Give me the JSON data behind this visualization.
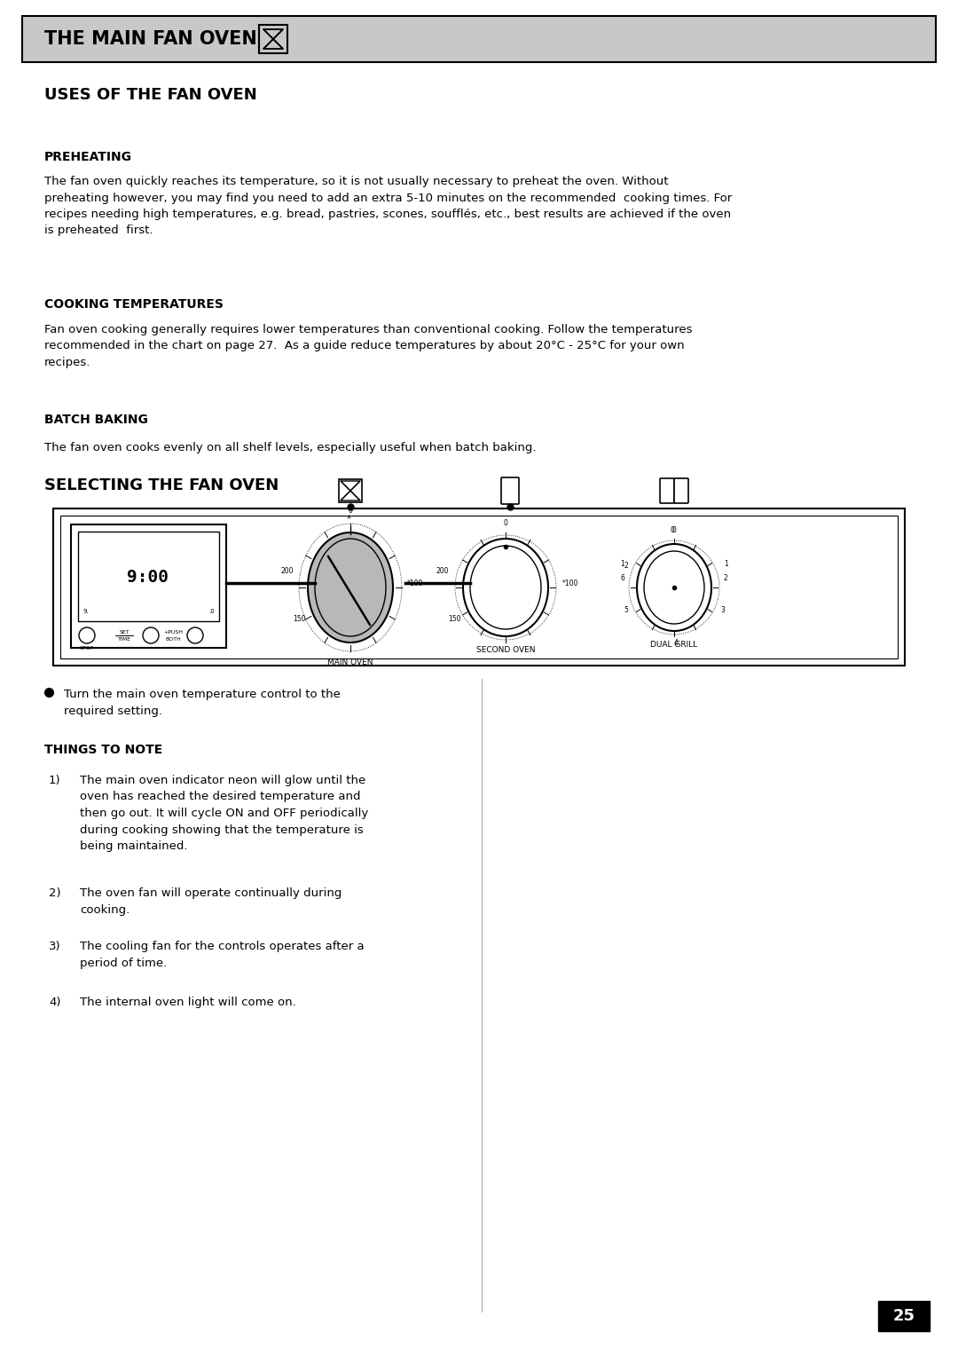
{
  "title": "THE MAIN FAN OVEN",
  "section1_title": "USES OF THE FAN OVEN",
  "sub1_title": "PREHEATING",
  "sub1_text": "The fan oven quickly reaches its temperature, so it is not usually necessary to preheat the oven. Without\npreheating however, you may find you need to add an extra 5-10 minutes on the recommended  cooking times. For\nrecipes needing high temperatures, e.g. bread, pastries, scones, soufflés, etc., best results are achieved if the oven\nis preheated  first.",
  "sub2_title": "COOKING TEMPERATURES",
  "sub2_text": "Fan oven cooking generally requires lower temperatures than conventional cooking. Follow the temperatures\nrecommended in the chart on page 27.  As a guide reduce temperatures by about 20°C - 25°C for your own\nrecipes.",
  "sub3_title": "BATCH BAKING",
  "sub3_text": "The fan oven cooks evenly on all shelf levels, especially useful when batch baking.",
  "section2_title": "SELECTING THE FAN OVEN",
  "bullet1": "Turn the main oven temperature control to the\nrequired setting.",
  "things_title": "THINGS TO NOTE",
  "note1": "The main oven indicator neon will glow until the\noven has reached the desired temperature and\nthen go out. It will cycle ON and OFF periodically\nduring cooking showing that the temperature is\nbeing maintained.",
  "note2": "The oven fan will operate continually during\ncooking.",
  "note3": "The cooling fan for the controls operates after a\nperiod of time.",
  "note4": "The internal oven light will come on.",
  "page_number": "25",
  "bg_color": "#ffffff",
  "header_bg": "#c8c8c8",
  "text_color": "#000000"
}
